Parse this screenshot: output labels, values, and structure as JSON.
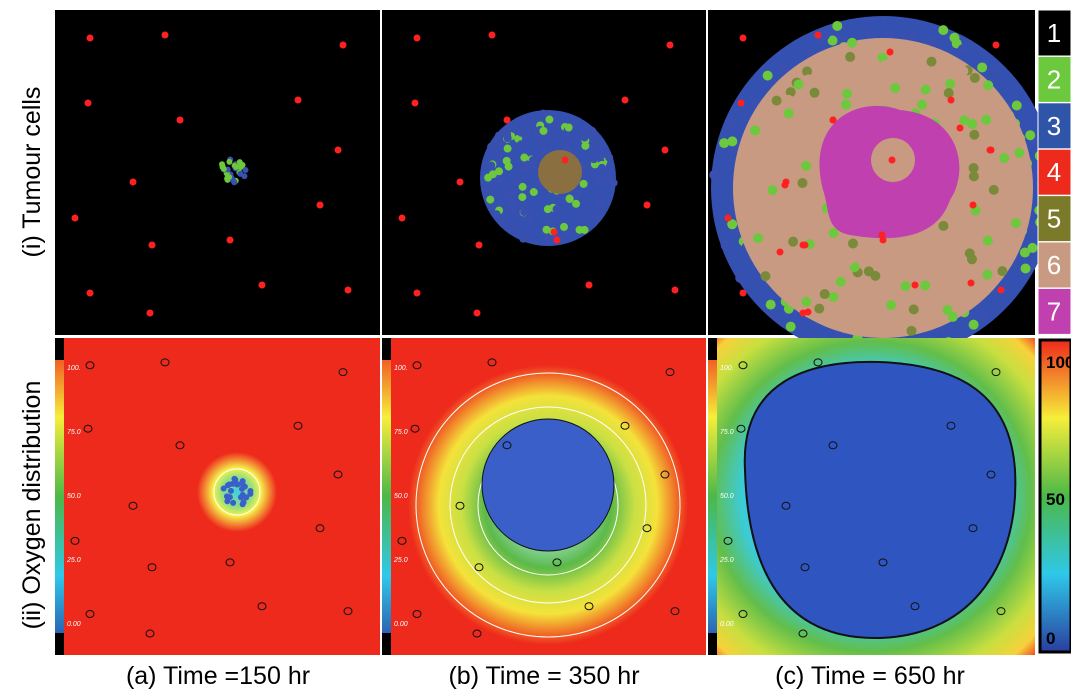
{
  "row_labels": [
    "(i) Tumour cells",
    "(ii) Oxygen distribution"
  ],
  "panels": [
    {
      "caption": "(a) Time =150 hr"
    },
    {
      "caption": "(b) Time = 350 hr"
    },
    {
      "caption": "(c) Time = 650 hr"
    }
  ],
  "cell_legend": [
    "1",
    "2",
    "3",
    "4",
    "5",
    "6",
    "7"
  ],
  "colorbar": [
    "100",
    "50",
    "0"
  ],
  "panel_scale": [
    "100.",
    "75.0",
    "50.0",
    "25.0",
    "0.00"
  ]
}
